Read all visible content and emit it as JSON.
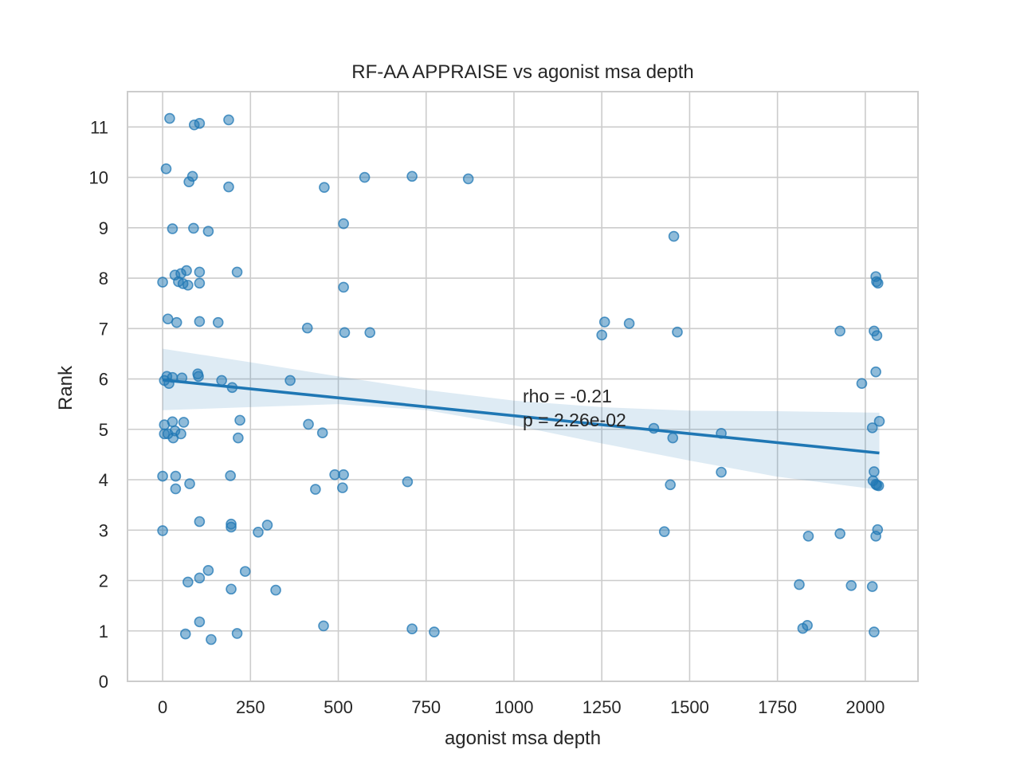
{
  "chart_data": {
    "type": "scatter",
    "title": "RF-AA APPRAISE vs agonist msa depth",
    "xlabel": "agonist msa depth",
    "ylabel": "Rank",
    "xlim": [
      -100,
      2150
    ],
    "ylim": [
      0,
      11.7
    ],
    "xticks": [
      0,
      250,
      500,
      750,
      1000,
      1250,
      1500,
      1750,
      2000
    ],
    "yticks": [
      0,
      1,
      2,
      3,
      4,
      5,
      6,
      7,
      8,
      9,
      10,
      11
    ],
    "grid": true,
    "colors": {
      "points": "#1f77b4",
      "line": "#1f77b4"
    },
    "annotation": [
      "rho = -0.21",
      "p = 2.26e-02"
    ],
    "regression": {
      "x0": 0,
      "y0": 5.98,
      "x1": 2040,
      "y1": 4.53
    },
    "confidence_band": {
      "x": [
        0,
        250,
        500,
        750,
        1000,
        1250,
        1500,
        1750,
        2040
      ],
      "upper": [
        6.6,
        6.33,
        6.05,
        5.78,
        5.57,
        5.44,
        5.37,
        5.36,
        5.33
      ],
      "lower": [
        5.38,
        5.44,
        5.5,
        5.38,
        5.08,
        4.72,
        4.38,
        4.06,
        3.8
      ]
    },
    "points": [
      {
        "x": 20,
        "y": 11.17
      },
      {
        "x": 90,
        "y": 11.04
      },
      {
        "x": 105,
        "y": 11.07
      },
      {
        "x": 188,
        "y": 11.14
      },
      {
        "x": 10,
        "y": 10.17
      },
      {
        "x": 85,
        "y": 10.02
      },
      {
        "x": 75,
        "y": 9.91
      },
      {
        "x": 188,
        "y": 9.81
      },
      {
        "x": 460,
        "y": 9.8
      },
      {
        "x": 575,
        "y": 10.0
      },
      {
        "x": 710,
        "y": 10.02
      },
      {
        "x": 870,
        "y": 9.97
      },
      {
        "x": 28,
        "y": 8.98
      },
      {
        "x": 88,
        "y": 8.99
      },
      {
        "x": 130,
        "y": 8.93
      },
      {
        "x": 515,
        "y": 9.08
      },
      {
        "x": 1455,
        "y": 8.83
      },
      {
        "x": 0,
        "y": 7.92
      },
      {
        "x": 35,
        "y": 8.06
      },
      {
        "x": 45,
        "y": 7.93
      },
      {
        "x": 52,
        "y": 8.09
      },
      {
        "x": 58,
        "y": 7.89
      },
      {
        "x": 68,
        "y": 8.15
      },
      {
        "x": 72,
        "y": 7.86
      },
      {
        "x": 105,
        "y": 8.12
      },
      {
        "x": 105,
        "y": 7.9
      },
      {
        "x": 212,
        "y": 8.12
      },
      {
        "x": 515,
        "y": 7.82
      },
      {
        "x": 2030,
        "y": 8.03
      },
      {
        "x": 2032,
        "y": 7.93
      },
      {
        "x": 2036,
        "y": 7.9
      },
      {
        "x": 15,
        "y": 7.19
      },
      {
        "x": 40,
        "y": 7.12
      },
      {
        "x": 105,
        "y": 7.14
      },
      {
        "x": 158,
        "y": 7.12
      },
      {
        "x": 412,
        "y": 7.01
      },
      {
        "x": 518,
        "y": 6.92
      },
      {
        "x": 590,
        "y": 6.92
      },
      {
        "x": 1258,
        "y": 7.13
      },
      {
        "x": 1250,
        "y": 6.87
      },
      {
        "x": 1328,
        "y": 7.1
      },
      {
        "x": 1465,
        "y": 6.93
      },
      {
        "x": 1928,
        "y": 6.95
      },
      {
        "x": 2025,
        "y": 6.95
      },
      {
        "x": 2033,
        "y": 6.86
      },
      {
        "x": 5,
        "y": 5.97
      },
      {
        "x": 12,
        "y": 6.05
      },
      {
        "x": 18,
        "y": 5.91
      },
      {
        "x": 28,
        "y": 6.03
      },
      {
        "x": 55,
        "y": 6.02
      },
      {
        "x": 100,
        "y": 6.1
      },
      {
        "x": 102,
        "y": 6.05
      },
      {
        "x": 168,
        "y": 5.97
      },
      {
        "x": 198,
        "y": 5.83
      },
      {
        "x": 363,
        "y": 5.97
      },
      {
        "x": 2030,
        "y": 6.14
      },
      {
        "x": 1990,
        "y": 5.91
      },
      {
        "x": 5,
        "y": 5.09
      },
      {
        "x": 5,
        "y": 4.91
      },
      {
        "x": 15,
        "y": 4.91
      },
      {
        "x": 28,
        "y": 5.15
      },
      {
        "x": 30,
        "y": 4.83
      },
      {
        "x": 35,
        "y": 4.97
      },
      {
        "x": 52,
        "y": 4.91
      },
      {
        "x": 60,
        "y": 5.14
      },
      {
        "x": 220,
        "y": 5.18
      },
      {
        "x": 215,
        "y": 4.83
      },
      {
        "x": 415,
        "y": 5.1
      },
      {
        "x": 455,
        "y": 4.93
      },
      {
        "x": 1398,
        "y": 5.02
      },
      {
        "x": 1452,
        "y": 4.83
      },
      {
        "x": 1590,
        "y": 4.92
      },
      {
        "x": 2020,
        "y": 5.03
      },
      {
        "x": 2040,
        "y": 5.16
      },
      {
        "x": 0,
        "y": 4.07
      },
      {
        "x": 37,
        "y": 4.07
      },
      {
        "x": 37,
        "y": 3.82
      },
      {
        "x": 77,
        "y": 3.92
      },
      {
        "x": 193,
        "y": 4.08
      },
      {
        "x": 435,
        "y": 3.81
      },
      {
        "x": 490,
        "y": 4.1
      },
      {
        "x": 512,
        "y": 3.84
      },
      {
        "x": 515,
        "y": 4.1
      },
      {
        "x": 697,
        "y": 3.96
      },
      {
        "x": 1445,
        "y": 3.9
      },
      {
        "x": 1590,
        "y": 4.15
      },
      {
        "x": 2025,
        "y": 4.16
      },
      {
        "x": 2022,
        "y": 3.98
      },
      {
        "x": 2030,
        "y": 3.91
      },
      {
        "x": 2033,
        "y": 3.89
      },
      {
        "x": 2038,
        "y": 3.88
      },
      {
        "x": 0,
        "y": 2.99
      },
      {
        "x": 105,
        "y": 3.17
      },
      {
        "x": 195,
        "y": 3.12
      },
      {
        "x": 195,
        "y": 3.06
      },
      {
        "x": 272,
        "y": 2.96
      },
      {
        "x": 298,
        "y": 3.1
      },
      {
        "x": 1428,
        "y": 2.97
      },
      {
        "x": 1838,
        "y": 2.88
      },
      {
        "x": 1928,
        "y": 2.93
      },
      {
        "x": 2030,
        "y": 2.88
      },
      {
        "x": 2035,
        "y": 3.01
      },
      {
        "x": 72,
        "y": 1.97
      },
      {
        "x": 105,
        "y": 2.05
      },
      {
        "x": 130,
        "y": 2.2
      },
      {
        "x": 195,
        "y": 1.83
      },
      {
        "x": 235,
        "y": 2.18
      },
      {
        "x": 322,
        "y": 1.81
      },
      {
        "x": 1812,
        "y": 1.92
      },
      {
        "x": 1960,
        "y": 1.9
      },
      {
        "x": 2020,
        "y": 1.88
      },
      {
        "x": 65,
        "y": 0.94
      },
      {
        "x": 105,
        "y": 1.18
      },
      {
        "x": 138,
        "y": 0.83
      },
      {
        "x": 212,
        "y": 0.95
      },
      {
        "x": 458,
        "y": 1.1
      },
      {
        "x": 710,
        "y": 1.04
      },
      {
        "x": 773,
        "y": 0.98
      },
      {
        "x": 1822,
        "y": 1.05
      },
      {
        "x": 1835,
        "y": 1.11
      },
      {
        "x": 2025,
        "y": 0.98
      }
    ]
  }
}
